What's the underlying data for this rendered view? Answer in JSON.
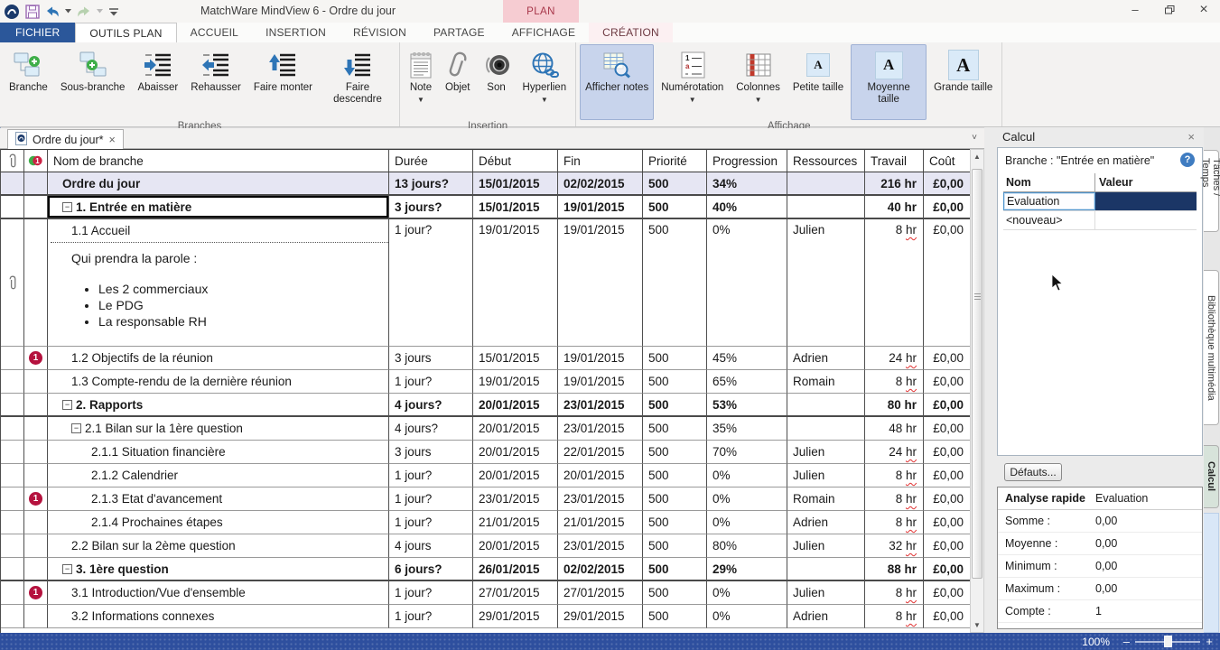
{
  "window": {
    "title": "MatchWare MindView 6 - Ordre du jour",
    "contextual_group": "PLAN",
    "controls": {
      "minimize": "–",
      "close": "×"
    },
    "help": "?"
  },
  "glyphs": {
    "dropdown": "▼",
    "collapse": "−",
    "close": "×",
    "chevron_down": "˅",
    "scroll_up": "▲",
    "scroll_down": "▼",
    "zoom_out": "–",
    "zoom_in": "+"
  },
  "quick_access": [
    {
      "icon": "app-logo"
    },
    {
      "icon": "save"
    },
    {
      "icon": "undo"
    },
    {
      "icon": "dropdown-small"
    },
    {
      "icon": "redo"
    },
    {
      "icon": "dropdown-small-disabled"
    },
    {
      "icon": "customize-quick-access"
    }
  ],
  "ribbon_tabs": [
    {
      "label": "FICHIER",
      "style": "file"
    },
    {
      "label": "OUTILS PLAN",
      "style": "active"
    },
    {
      "label": "ACCUEIL",
      "style": ""
    },
    {
      "label": "INSERTION",
      "style": ""
    },
    {
      "label": "RÉVISION",
      "style": ""
    },
    {
      "label": "PARTAGE",
      "style": ""
    },
    {
      "label": "AFFICHAGE",
      "style": ""
    },
    {
      "label": "CRÉATION",
      "style": "contextual"
    }
  ],
  "ribbon_groups": [
    {
      "label": "Branches",
      "buttons": [
        {
          "label": "Branche",
          "icon": "branch-add"
        },
        {
          "label": "Sous-branche",
          "icon": "subbranch-add"
        },
        {
          "label": "Abaisser",
          "icon": "indent-right"
        },
        {
          "label": "Rehausser",
          "icon": "indent-left"
        },
        {
          "label": "Faire monter",
          "icon": "move-up"
        },
        {
          "label": "Faire descendre",
          "icon": "move-down"
        }
      ]
    },
    {
      "label": "Insertion",
      "buttons": [
        {
          "label": "Note",
          "icon": "note",
          "dropdown": true
        },
        {
          "label": "Objet",
          "icon": "paperclip-lg"
        },
        {
          "label": "Son",
          "icon": "sound"
        },
        {
          "label": "Hyperlien",
          "icon": "globe-link",
          "dropdown": true
        }
      ]
    },
    {
      "label": "Affichage",
      "buttons": [
        {
          "label": "Afficher notes",
          "icon": "show-notes",
          "active": true
        },
        {
          "label": "Numérotation",
          "icon": "numbering",
          "dropdown": true
        },
        {
          "label": "Colonnes",
          "icon": "columns",
          "dropdown": true
        },
        {
          "label": "Petite taille",
          "icon": "font-small"
        },
        {
          "label": "Moyenne taille",
          "icon": "font-medium",
          "active": true
        },
        {
          "label": "Grande taille",
          "icon": "font-large"
        }
      ]
    }
  ],
  "document_tab": {
    "label": "Ordre du jour*"
  },
  "outline": {
    "headers": [
      "Nom de branche",
      "Durée",
      "Début",
      "Fin",
      "Priorité",
      "Progression",
      "Ressources",
      "Travail",
      "Coût"
    ],
    "note": {
      "intro": "Qui prendra la parole :",
      "bullets": [
        "Les 2 commerciaux",
        "Le PDG",
        "La responsable RH"
      ]
    },
    "rows": [
      {
        "name": "Ordre du jour",
        "level": 0,
        "bold": true,
        "shaded": true,
        "duree": "13 jours?",
        "debut": "15/01/2015",
        "fin": "02/02/2015",
        "prio": "500",
        "prog": "34%",
        "res": "",
        "trav": "216 hr",
        "cout": "£0,00"
      },
      {
        "name": "1. Entrée en matière",
        "level": 0,
        "bold": true,
        "collapse": true,
        "selected": true,
        "duree": "3 jours?",
        "debut": "15/01/2015",
        "fin": "19/01/2015",
        "prio": "500",
        "prog": "40%",
        "res": "",
        "trav": "40 hr",
        "cout": "£0,00"
      },
      {
        "name": "1.1 Accueil",
        "level": 1,
        "has_note": true,
        "wavy": true,
        "duree": "1 jour?",
        "debut": "19/01/2015",
        "fin": "19/01/2015",
        "prio": "500",
        "prog": "0%",
        "res": "Julien",
        "trav": "8 hr",
        "cout": "£0,00"
      },
      {
        "name": "1.2 Objectifs de la réunion",
        "level": 1,
        "flag": "1",
        "wavy": true,
        "duree": "3 jours",
        "debut": "15/01/2015",
        "fin": "19/01/2015",
        "prio": "500",
        "prog": "45%",
        "res": "Adrien",
        "trav": "24 hr",
        "cout": "£0,00"
      },
      {
        "name": "1.3 Compte-rendu de la dernière réunion",
        "level": 1,
        "wavy": true,
        "duree": "1 jour?",
        "debut": "19/01/2015",
        "fin": "19/01/2015",
        "prio": "500",
        "prog": "65%",
        "res": "Romain",
        "trav": "8 hr",
        "cout": "£0,00"
      },
      {
        "name": "2. Rapports",
        "level": 0,
        "bold": true,
        "collapse": true,
        "duree": "4 jours?",
        "debut": "20/01/2015",
        "fin": "23/01/2015",
        "prio": "500",
        "prog": "53%",
        "res": "",
        "trav": "80 hr",
        "cout": "£0,00"
      },
      {
        "name": "2.1 Bilan sur la 1ère question",
        "level": 1,
        "collapse": true,
        "duree": "4 jours?",
        "debut": "20/01/2015",
        "fin": "23/01/2015",
        "prio": "500",
        "prog": "35%",
        "res": "",
        "trav": "48 hr",
        "cout": "£0,00"
      },
      {
        "name": "2.1.1 Situation financière",
        "level": 2,
        "wavy": true,
        "duree": "3 jours",
        "debut": "20/01/2015",
        "fin": "22/01/2015",
        "prio": "500",
        "prog": "70%",
        "res": "Julien",
        "trav": "24 hr",
        "cout": "£0,00"
      },
      {
        "name": "2.1.2 Calendrier",
        "level": 2,
        "wavy": true,
        "duree": "1 jour?",
        "debut": "20/01/2015",
        "fin": "20/01/2015",
        "prio": "500",
        "prog": "0%",
        "res": "Julien",
        "trav": "8 hr",
        "cout": "£0,00"
      },
      {
        "name": "2.1.3 Etat d'avancement",
        "level": 2,
        "flag": "1",
        "wavy": true,
        "duree": "1 jour?",
        "debut": "23/01/2015",
        "fin": "23/01/2015",
        "prio": "500",
        "prog": "0%",
        "res": "Romain",
        "trav": "8 hr",
        "cout": "£0,00"
      },
      {
        "name": "2.1.4 Prochaines étapes",
        "level": 2,
        "wavy": true,
        "duree": "1 jour?",
        "debut": "21/01/2015",
        "fin": "21/01/2015",
        "prio": "500",
        "prog": "0%",
        "res": "Adrien",
        "trav": "8 hr",
        "cout": "£0,00"
      },
      {
        "name": "2.2 Bilan sur la 2ème question",
        "level": 1,
        "wavy": true,
        "duree": "4 jours",
        "debut": "20/01/2015",
        "fin": "23/01/2015",
        "prio": "500",
        "prog": "80%",
        "res": "Julien",
        "trav": "32 hr",
        "cout": "£0,00"
      },
      {
        "name": "3. 1ère question",
        "level": 0,
        "bold": true,
        "collapse": true,
        "duree": "6 jours?",
        "debut": "26/01/2015",
        "fin": "02/02/2015",
        "prio": "500",
        "prog": "29%",
        "res": "",
        "trav": "88 hr",
        "cout": "£0,00"
      },
      {
        "name": "3.1 Introduction/Vue d'ensemble",
        "level": 1,
        "flag": "1",
        "wavy": true,
        "duree": "1 jour?",
        "debut": "27/01/2015",
        "fin": "27/01/2015",
        "prio": "500",
        "prog": "0%",
        "res": "Julien",
        "trav": "8 hr",
        "cout": "£0,00"
      },
      {
        "name": "3.2 Informations connexes",
        "level": 1,
        "wavy": true,
        "duree": "1 jour?",
        "debut": "29/01/2015",
        "fin": "29/01/2015",
        "prio": "500",
        "prog": "0%",
        "res": "Adrien",
        "trav": "8 hr",
        "cout": "£0,00"
      }
    ]
  },
  "calc_panel": {
    "title": "Calcul",
    "branch_label": "Branche : \"Entrée en matière\"",
    "grid": {
      "col1": "Nom",
      "col2": "Valeur",
      "rows": [
        {
          "nom": "Evaluation",
          "valeur": "",
          "selected": true
        },
        {
          "nom": "<nouveau>",
          "valeur": ""
        }
      ]
    },
    "defaults_button": "Défauts...",
    "quick_analysis": {
      "title": "Analyse rapide",
      "column": "Evaluation",
      "rows": [
        {
          "label": "Somme :",
          "value": "0,00"
        },
        {
          "label": "Moyenne :",
          "value": "0,00"
        },
        {
          "label": "Minimum :",
          "value": "0,00"
        },
        {
          "label": "Maximum :",
          "value": "0,00"
        },
        {
          "label": "Compte :",
          "value": "1"
        }
      ]
    }
  },
  "side_tabs": [
    {
      "label": "Tâches / Temps",
      "active": false
    },
    {
      "label": "Bibliothèque multimédia",
      "active": false
    },
    {
      "label": "Calcul",
      "active": true
    }
  ],
  "status_bar": {
    "zoom_level": "100%"
  },
  "colors": {
    "accent_blue": "#2b579a",
    "contextual_pink": "#f6ccd2",
    "contextual_text": "#a8374a",
    "selection_navy": "#1b3666",
    "flag_red": "#b5123e",
    "button_highlight": "#c8d4ec",
    "status_bar_blue": "#2e4f9e",
    "root_row_shade": "#e6e6f3"
  }
}
